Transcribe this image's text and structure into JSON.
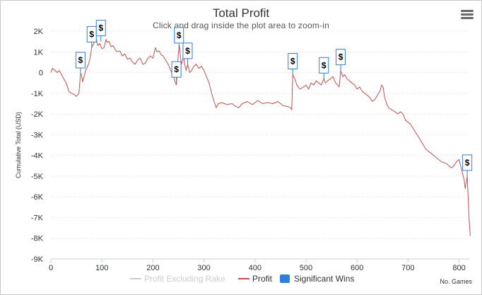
{
  "chart_data": {
    "type": "line",
    "title": "Total Profit",
    "subtitle": "Click and drag inside the plot area to zoom-in",
    "ylabel": "Cumulative Total (USD)",
    "xunit_label": "No. Games",
    "xlim": [
      0,
      820
    ],
    "ylim": [
      -9000,
      2000
    ],
    "x_ticks": [
      "0",
      "100",
      "200",
      "300",
      "400",
      "500",
      "600",
      "700",
      "800"
    ],
    "x_tick_values": [
      0,
      100,
      200,
      300,
      400,
      500,
      600,
      700,
      800
    ],
    "y_ticks": [
      "2K",
      "1K",
      "0",
      "-1K",
      "-2K",
      "-3K",
      "-4K",
      "-5K",
      "-6K",
      "-7K",
      "-8K",
      "-9K"
    ],
    "y_tick_values": [
      2000,
      1000,
      0,
      -1000,
      -2000,
      -3000,
      -4000,
      -5000,
      -6000,
      -7000,
      -8000,
      -9000
    ],
    "grid": true,
    "legend_position": "bottom",
    "legend": [
      {
        "label": "Profit Excluding Rake",
        "visible": false,
        "color": "#cccccc"
      },
      {
        "label": "Profit",
        "visible": true,
        "color": "#c0504d"
      },
      {
        "label": "Significant Wins",
        "visible": true,
        "color": "#2f7ed8"
      }
    ],
    "series": [
      {
        "name": "Profit",
        "color": "#c0504d",
        "points": [
          [
            0,
            0
          ],
          [
            3,
            200
          ],
          [
            8,
            100
          ],
          [
            12,
            0
          ],
          [
            16,
            100
          ],
          [
            20,
            -50
          ],
          [
            25,
            -300
          ],
          [
            30,
            -500
          ],
          [
            35,
            -900
          ],
          [
            40,
            -1000
          ],
          [
            45,
            -1050
          ],
          [
            50,
            -1150
          ],
          [
            55,
            -1000
          ],
          [
            58,
            -50
          ],
          [
            60,
            -100
          ],
          [
            62,
            -450
          ],
          [
            64,
            -300
          ],
          [
            68,
            100
          ],
          [
            72,
            300
          ],
          [
            76,
            600
          ],
          [
            80,
            1200
          ],
          [
            84,
            1400
          ],
          [
            88,
            1700
          ],
          [
            92,
            1300
          ],
          [
            96,
            1400
          ],
          [
            100,
            1150
          ],
          [
            104,
            1200
          ],
          [
            108,
            1600
          ],
          [
            110,
            1450
          ],
          [
            114,
            1500
          ],
          [
            118,
            1250
          ],
          [
            122,
            1300
          ],
          [
            126,
            1100
          ],
          [
            130,
            1000
          ],
          [
            135,
            1050
          ],
          [
            140,
            800
          ],
          [
            145,
            900
          ],
          [
            150,
            650
          ],
          [
            155,
            700
          ],
          [
            160,
            500
          ],
          [
            165,
            400
          ],
          [
            170,
            600
          ],
          [
            175,
            700
          ],
          [
            180,
            400
          ],
          [
            185,
            450
          ],
          [
            190,
            700
          ],
          [
            195,
            800
          ],
          [
            200,
            700
          ],
          [
            205,
            1200
          ],
          [
            208,
            1000
          ],
          [
            212,
            1050
          ],
          [
            216,
            850
          ],
          [
            220,
            800
          ],
          [
            225,
            600
          ],
          [
            230,
            400
          ],
          [
            235,
            100
          ],
          [
            240,
            -200
          ],
          [
            244,
            -500
          ],
          [
            246,
            -600
          ],
          [
            248,
            200
          ],
          [
            250,
            1000
          ],
          [
            252,
            1300
          ],
          [
            254,
            700
          ],
          [
            256,
            400
          ],
          [
            258,
            600
          ],
          [
            260,
            800
          ],
          [
            262,
            400
          ],
          [
            265,
            100
          ],
          [
            268,
            400
          ],
          [
            272,
            0
          ],
          [
            276,
            100
          ],
          [
            280,
            300
          ],
          [
            285,
            400
          ],
          [
            290,
            200
          ],
          [
            295,
            300
          ],
          [
            300,
            100
          ],
          [
            305,
            -200
          ],
          [
            310,
            -500
          ],
          [
            315,
            -1000
          ],
          [
            320,
            -1400
          ],
          [
            324,
            -1700
          ],
          [
            328,
            -1500
          ],
          [
            335,
            -1450
          ],
          [
            345,
            -1550
          ],
          [
            355,
            -1500
          ],
          [
            360,
            -1600
          ],
          [
            368,
            -1700
          ],
          [
            375,
            -1500
          ],
          [
            385,
            -1400
          ],
          [
            395,
            -1550
          ],
          [
            405,
            -1350
          ],
          [
            415,
            -1500
          ],
          [
            425,
            -1450
          ],
          [
            435,
            -1500
          ],
          [
            445,
            -1400
          ],
          [
            455,
            -1600
          ],
          [
            465,
            -1650
          ],
          [
            470,
            -1700
          ],
          [
            472,
            -1800
          ],
          [
            474,
            -100
          ],
          [
            478,
            -300
          ],
          [
            482,
            -600
          ],
          [
            488,
            -800
          ],
          [
            495,
            -700
          ],
          [
            500,
            -600
          ],
          [
            505,
            -800
          ],
          [
            510,
            -500
          ],
          [
            515,
            -600
          ],
          [
            520,
            -400
          ],
          [
            525,
            -500
          ],
          [
            530,
            -600
          ],
          [
            535,
            -300
          ],
          [
            538,
            -500
          ],
          [
            542,
            -400
          ],
          [
            548,
            -300
          ],
          [
            553,
            -200
          ],
          [
            558,
            -500
          ],
          [
            562,
            -600
          ],
          [
            565,
            -700
          ],
          [
            568,
            100
          ],
          [
            572,
            -200
          ],
          [
            576,
            -100
          ],
          [
            580,
            -300
          ],
          [
            585,
            -400
          ],
          [
            590,
            -500
          ],
          [
            595,
            -600
          ],
          [
            600,
            -800
          ],
          [
            605,
            -700
          ],
          [
            610,
            -900
          ],
          [
            615,
            -1000
          ],
          [
            620,
            -1100
          ],
          [
            625,
            -1200
          ],
          [
            630,
            -1400
          ],
          [
            635,
            -1300
          ],
          [
            640,
            -1100
          ],
          [
            645,
            -900
          ],
          [
            648,
            -600
          ],
          [
            651,
            -700
          ],
          [
            654,
            -1200
          ],
          [
            658,
            -1500
          ],
          [
            662,
            -1700
          ],
          [
            668,
            -1800
          ],
          [
            675,
            -1900
          ],
          [
            680,
            -2000
          ],
          [
            685,
            -1900
          ],
          [
            690,
            -2000
          ],
          [
            695,
            -2300
          ],
          [
            700,
            -2400
          ],
          [
            705,
            -2500
          ],
          [
            710,
            -2700
          ],
          [
            715,
            -2900
          ],
          [
            720,
            -3100
          ],
          [
            725,
            -3300
          ],
          [
            730,
            -3500
          ],
          [
            735,
            -3700
          ],
          [
            740,
            -3800
          ],
          [
            745,
            -3900
          ],
          [
            750,
            -4000
          ],
          [
            755,
            -4100
          ],
          [
            760,
            -4200
          ],
          [
            765,
            -4300
          ],
          [
            770,
            -4350
          ],
          [
            775,
            -4400
          ],
          [
            780,
            -4500
          ],
          [
            785,
            -4600
          ],
          [
            790,
            -4500
          ],
          [
            795,
            -4300
          ],
          [
            800,
            -4200
          ],
          [
            805,
            -4700
          ],
          [
            810,
            -5200
          ],
          [
            812,
            -5600
          ],
          [
            814,
            -5300
          ],
          [
            816,
            -5000
          ],
          [
            818,
            -6200
          ],
          [
            820,
            -7200
          ],
          [
            822,
            -7900
          ]
        ]
      }
    ],
    "significant_wins": [
      {
        "x": 58,
        "y": -50
      },
      {
        "x": 80,
        "y": 1200
      },
      {
        "x": 98,
        "y": 1500
      },
      {
        "x": 246,
        "y": -500
      },
      {
        "x": 251,
        "y": 1150
      },
      {
        "x": 268,
        "y": 400
      },
      {
        "x": 474,
        "y": -100
      },
      {
        "x": 535,
        "y": -300
      },
      {
        "x": 568,
        "y": 100
      },
      {
        "x": 816,
        "y": -5000
      }
    ],
    "flag_label": "$",
    "colors": {
      "line": "#c0504d",
      "flag_border": "#2f7ed8",
      "grid": "#d8d8d8"
    }
  },
  "menu_icon": "hamburger-menu-icon"
}
